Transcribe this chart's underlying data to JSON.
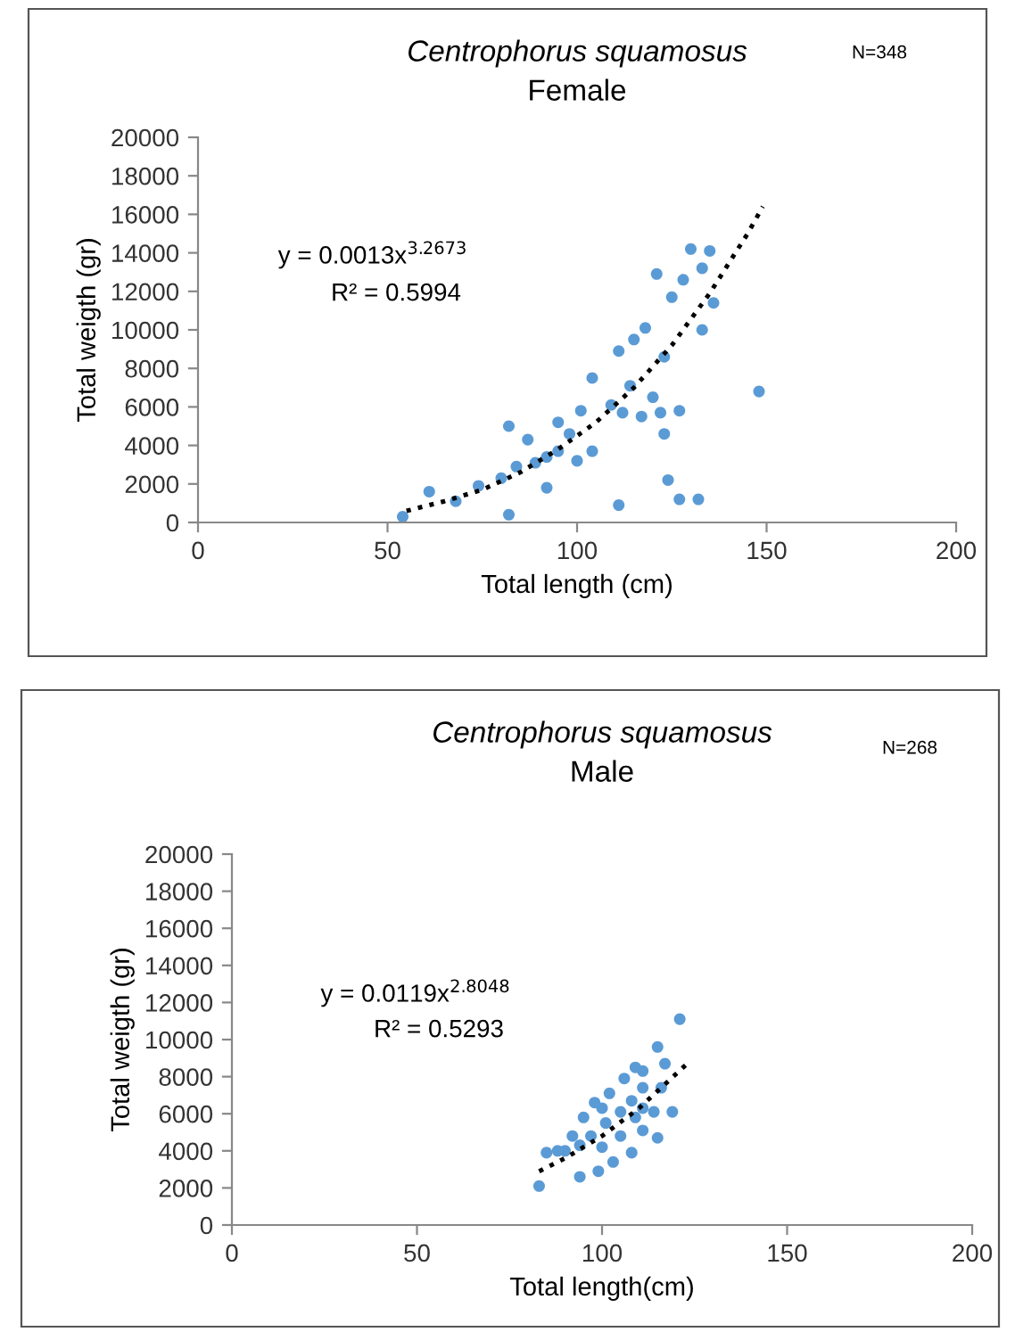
{
  "chart_data": [
    {
      "type": "scatter",
      "title": "Centrophorus squamosus",
      "subtitle": "Female",
      "xlabel": "Total length (cm)",
      "ylabel": "Total weigth (gr)",
      "annotations": [
        "N=348",
        "y = 0.0013x$^{3.2673}$",
        "R² = 0.5994"
      ],
      "xlim": [
        0,
        200
      ],
      "ylim": [
        0,
        20000
      ],
      "xticks": [
        0,
        50,
        100,
        150,
        200
      ],
      "yticks": [
        0,
        2000,
        4000,
        6000,
        8000,
        10000,
        12000,
        14000,
        16000,
        18000,
        20000
      ],
      "grid": false,
      "series": [
        {
          "color": "#5b9bd5",
          "marker": "circle",
          "x": [
            54,
            61,
            68,
            74,
            82,
            82,
            80,
            92,
            87,
            95,
            104,
            111,
            111,
            121,
            130,
            135,
            124,
            127,
            132,
            123,
            127,
            133,
            136,
            117,
            104,
            100,
            92,
            115,
            125,
            128,
            133,
            123,
            114,
            109,
            101,
            98,
            95,
            89,
            84,
            120,
            122,
            112,
            118,
            148
          ],
          "values": [
            300,
            1600,
            1100,
            1900,
            5000,
            400,
            2300,
            1800,
            4300,
            5200,
            7500,
            8900,
            900,
            12900,
            14200,
            14100,
            2200,
            1200,
            1200,
            4600,
            5800,
            10000,
            11400,
            5500,
            3700,
            3200,
            3400,
            9500,
            11700,
            12600,
            13200,
            8600,
            7100,
            6100,
            5800,
            4600,
            3700,
            3100,
            2900,
            6500,
            5700,
            5700,
            10100,
            6800
          ]
        },
        {
          "type": "line",
          "color": "#000000",
          "marker": "none",
          "line_style": "dotted",
          "x": [
            55,
            65,
            75,
            85,
            95,
            105,
            115,
            125,
            135,
            145,
            149
          ],
          "values": [
            600,
            1100,
            1700,
            2600,
            3800,
            5200,
            7000,
            9200,
            11900,
            15000,
            16400
          ]
        }
      ]
    },
    {
      "type": "scatter",
      "title": "Centrophorus squamosus",
      "subtitle": "Male",
      "xlabel": "Total length(cm)",
      "ylabel": "Total weigth (gr)",
      "annotations": [
        "N=268",
        "y = 0.0119x$^{2.8048}$",
        "R² = 0.5293"
      ],
      "xlim": [
        0,
        200
      ],
      "ylim": [
        0,
        20000
      ],
      "xticks": [
        0,
        50,
        100,
        150,
        200
      ],
      "yticks": [
        0,
        2000,
        4000,
        6000,
        8000,
        10000,
        12000,
        14000,
        16000,
        18000,
        20000
      ],
      "grid": false,
      "series": [
        {
          "color": "#5b9bd5",
          "marker": "circle",
          "x": [
            83,
            121,
            115,
            94,
            99,
            85,
            88,
            98,
            103,
            108,
            111,
            114,
            109,
            106,
            102,
            95,
            92,
            97,
            101,
            105,
            108,
            111,
            117,
            116,
            119,
            115,
            100,
            90,
            94,
            105,
            109,
            111,
            100,
            111
          ],
          "values": [
            2100,
            11100,
            9600,
            2600,
            2900,
            3900,
            4000,
            6600,
            3400,
            3900,
            5100,
            6100,
            8500,
            7900,
            7100,
            5800,
            4800,
            4800,
            5500,
            6100,
            6700,
            7400,
            8700,
            7400,
            6100,
            4700,
            4200,
            4000,
            4300,
            4800,
            5800,
            6300,
            6300,
            8300
          ]
        },
        {
          "type": "line",
          "color": "#000000",
          "marker": "none",
          "line_style": "dotted",
          "x": [
            83,
            90,
            100,
            110,
            123
          ],
          "values": [
            2900,
            3600,
            4800,
            6300,
            8700
          ]
        }
      ]
    }
  ]
}
